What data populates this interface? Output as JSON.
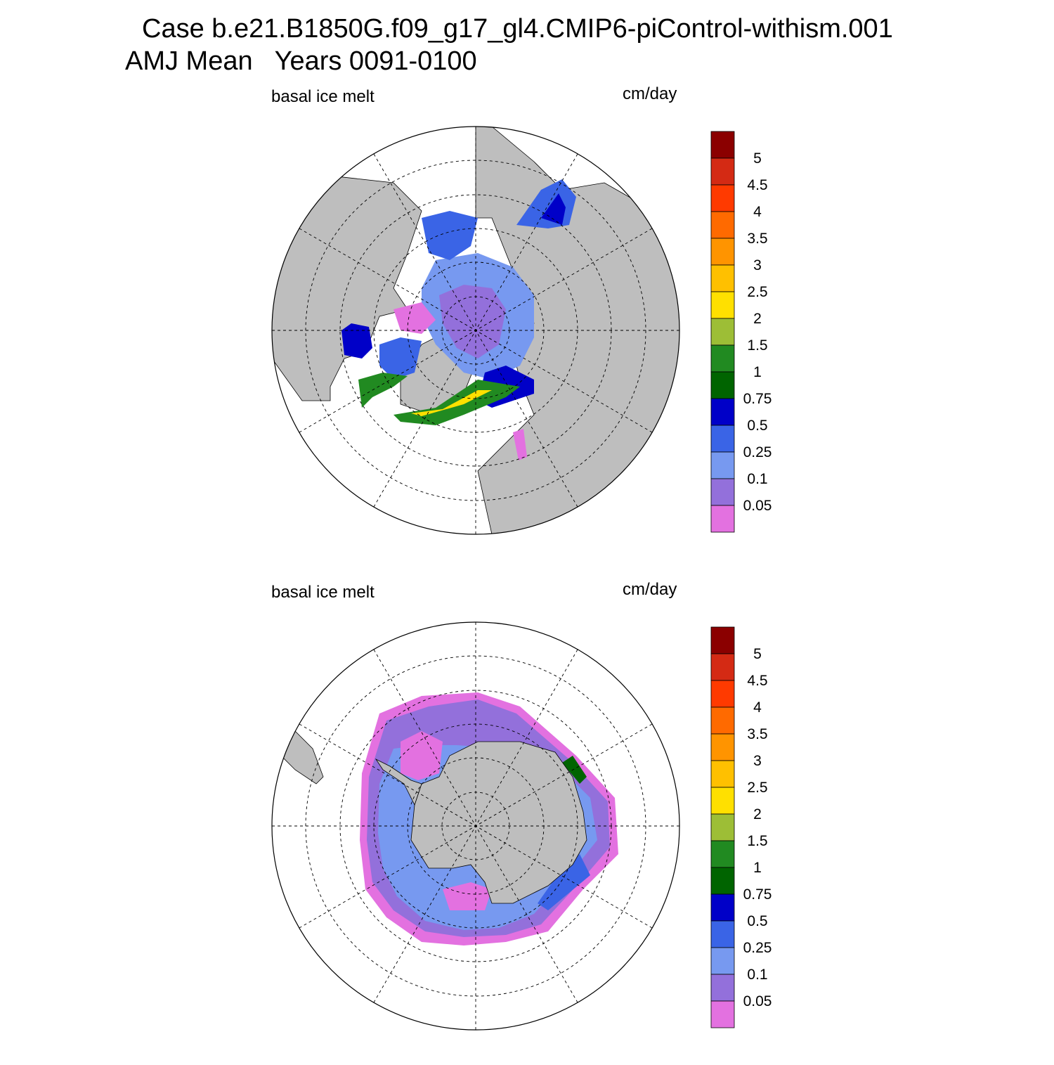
{
  "header": {
    "line1": "Case b.e21.B1850G.f09_g17_gl4.CMIP6-piControl-withism.001",
    "line2": "AMJ Mean   Years 0091-0100"
  },
  "panels": [
    {
      "id": "north",
      "hemisphere": "Northern",
      "left_label": "basal ice melt",
      "right_label": "cm/day"
    },
    {
      "id": "south",
      "hemisphere": "Southern",
      "left_label": "basal ice melt",
      "right_label": "cm/day"
    }
  ],
  "colorbar": {
    "labels": [
      "5",
      "4.5",
      "4",
      "3.5",
      "3",
      "2.5",
      "2",
      "1.5",
      "1",
      "0.75",
      "0.5",
      "0.25",
      "0.1",
      "0.05"
    ],
    "colors": [
      "#8b0000",
      "#d42a14",
      "#ff3a00",
      "#ff6a00",
      "#ff9400",
      "#ffc000",
      "#ffe000",
      "#9dbe36",
      "#218a21",
      "#006400",
      "#0000c8",
      "#3a64e6",
      "#7799f0",
      "#9370db",
      "#e371e0"
    ]
  },
  "map_colors": {
    "land": "#bebebe",
    "ocean": "#ffffff"
  }
}
